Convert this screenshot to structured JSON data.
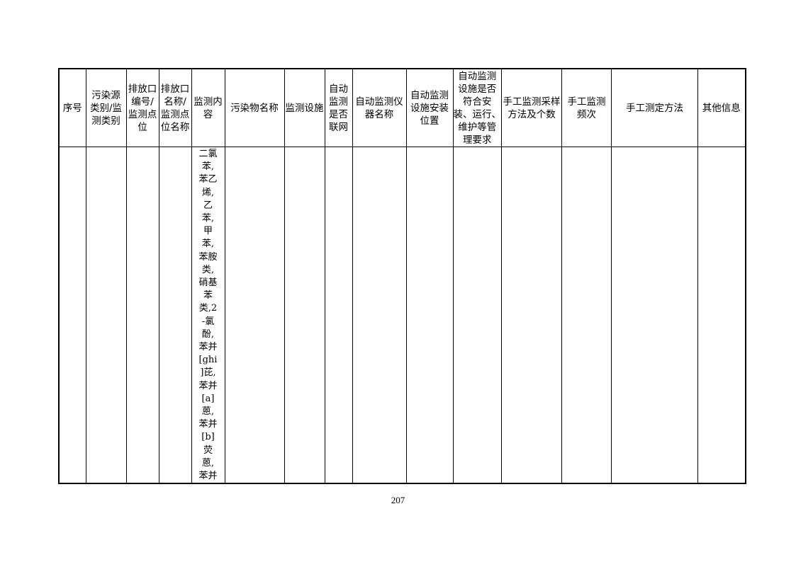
{
  "table": {
    "headers": [
      [
        "序号"
      ],
      [
        "污染源",
        "类别/监",
        "测类别"
      ],
      [
        "排放口",
        "编号/",
        "监测点",
        "位"
      ],
      [
        "排放口",
        "名称/",
        "监测点",
        "位名称"
      ],
      [
        "监测内",
        "容"
      ],
      [
        "污染物名称"
      ],
      [
        "监测设施"
      ],
      [
        "自动",
        "监测",
        "是否",
        "联网"
      ],
      [
        "自动监测仪",
        "器名称"
      ],
      [
        "自动监测",
        "设施安装",
        "位置"
      ],
      [
        "自动监测",
        "设施是否",
        "符合安",
        "装、运行、",
        "维护等管",
        "理要求"
      ],
      [
        "手工监测采样",
        "方法及个数"
      ],
      [
        "手工监测",
        "频次"
      ],
      [
        "手工测定方法"
      ],
      [
        "其他信息"
      ]
    ],
    "row": {
      "monitoring_content_lines": [
        "二氯",
        "苯,",
        "苯乙",
        "烯,",
        "乙",
        "苯,",
        "甲",
        "苯,",
        "苯胺",
        "类,",
        "硝基",
        "苯",
        "类,2",
        "-氯",
        "酚,",
        "苯并",
        "[ghi",
        "]芘,",
        "苯并",
        "[a]",
        "蒽,",
        "苯并",
        "[b]",
        "荧",
        "蒽,",
        "苯并"
      ]
    }
  },
  "page_number": "207"
}
